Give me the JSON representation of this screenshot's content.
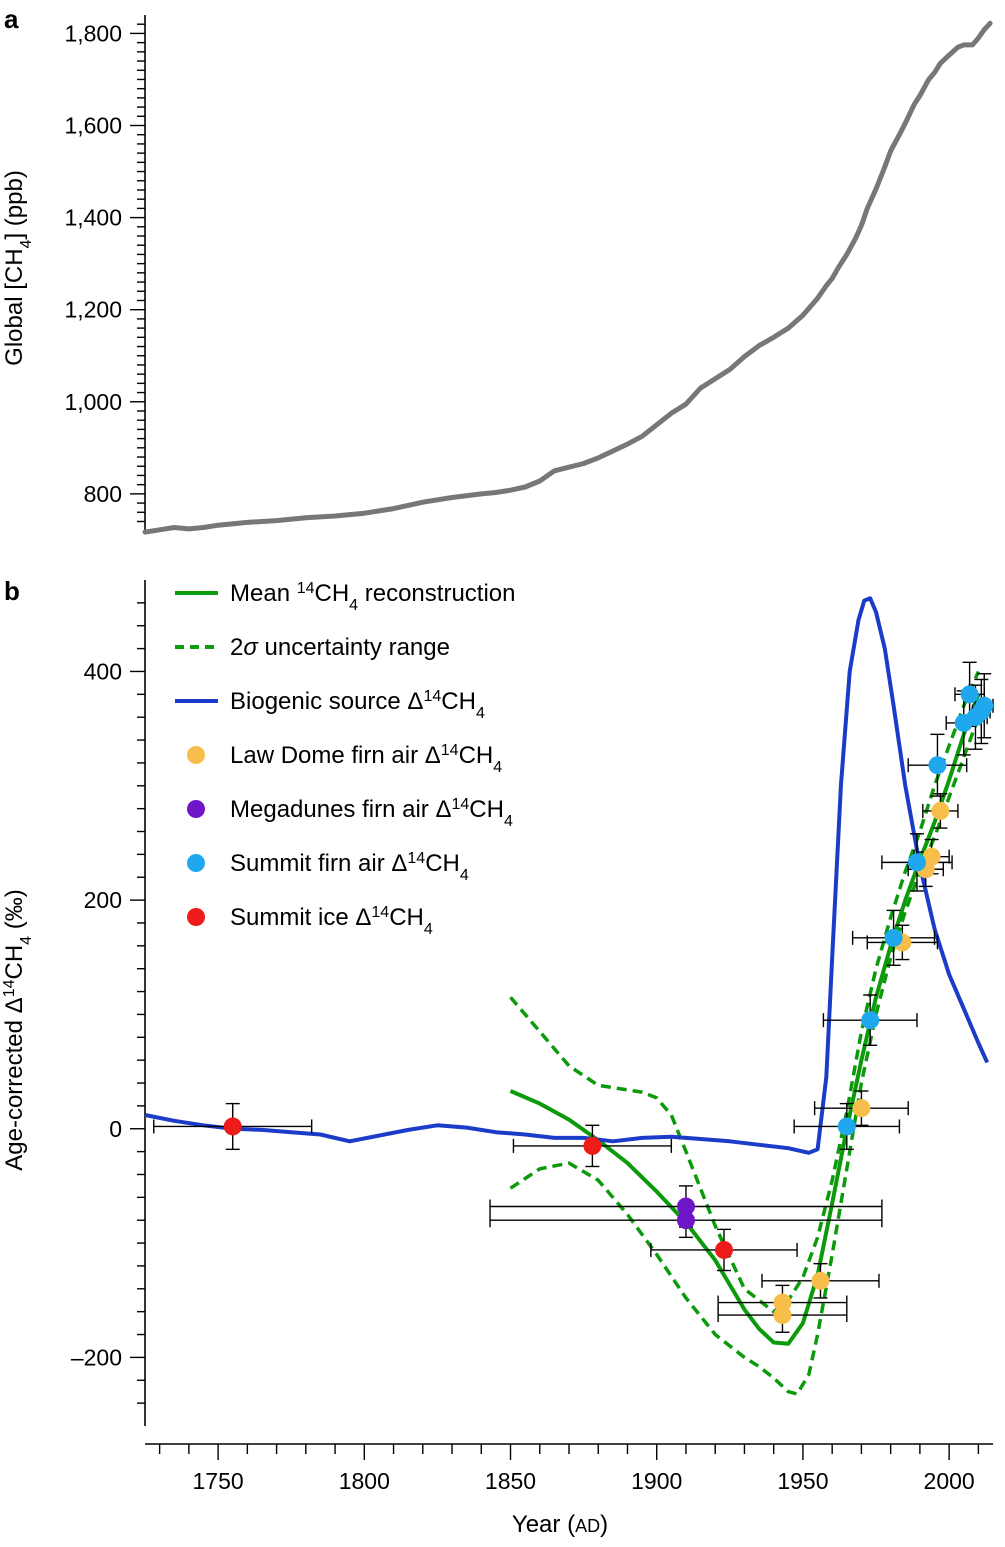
{
  "chart_data": [
    {
      "panel": "a",
      "type": "line",
      "ylabel": "Global [CH4] (ppb)",
      "ylim": [
        715,
        1840
      ],
      "xlim": [
        1725,
        2015
      ],
      "yticks": [
        800,
        1000,
        1200,
        1400,
        1600,
        1800
      ],
      "ytick_labels": [
        "800",
        "1,000",
        "1,200",
        "1,400",
        "1,600",
        "1,800"
      ],
      "series": [
        {
          "name": "Global CH4",
          "color": "#777777",
          "x": [
            1725,
            1730,
            1735,
            1740,
            1745,
            1750,
            1760,
            1770,
            1780,
            1790,
            1800,
            1810,
            1820,
            1830,
            1840,
            1845,
            1850,
            1855,
            1860,
            1865,
            1870,
            1875,
            1880,
            1885,
            1890,
            1895,
            1900,
            1905,
            1910,
            1915,
            1920,
            1925,
            1930,
            1935,
            1940,
            1945,
            1950,
            1955,
            1958,
            1960,
            1962,
            1965,
            1968,
            1970,
            1972,
            1975,
            1978,
            1980,
            1983,
            1985,
            1988,
            1990,
            1993,
            1995,
            1997,
            2000,
            2003,
            2005,
            2008,
            2010,
            2012,
            2014
          ],
          "y": [
            717,
            722,
            727,
            724,
            727,
            732,
            738,
            742,
            748,
            752,
            758,
            768,
            782,
            792,
            800,
            803,
            808,
            815,
            828,
            850,
            858,
            866,
            878,
            893,
            908,
            925,
            950,
            975,
            995,
            1030,
            1050,
            1070,
            1098,
            1122,
            1140,
            1160,
            1188,
            1225,
            1252,
            1268,
            1290,
            1320,
            1355,
            1383,
            1420,
            1462,
            1510,
            1545,
            1580,
            1605,
            1645,
            1665,
            1700,
            1715,
            1735,
            1753,
            1770,
            1775,
            1775,
            1790,
            1808,
            1822
          ]
        }
      ]
    },
    {
      "panel": "b",
      "type": "line",
      "xlabel": "Year",
      "xlabel_unit": "AD",
      "ylabel": "Age-corrected Δ14CH4 (‰)",
      "ylim": [
        -260,
        480
      ],
      "xlim": [
        1725,
        2015
      ],
      "xticks": [
        1750,
        1800,
        1850,
        1900,
        1950,
        2000
      ],
      "yticks": [
        -200,
        0,
        200,
        400
      ],
      "ytick_labels": [
        "–200",
        "0",
        "200",
        "400"
      ],
      "series": [
        {
          "name": "Mean 14CH4 reconstruction",
          "style": "solid",
          "color": "#0a9a0a",
          "x": [
            1850,
            1860,
            1870,
            1880,
            1890,
            1900,
            1910,
            1920,
            1930,
            1935,
            1940,
            1945,
            1950,
            1955,
            1960,
            1965,
            1970,
            1975,
            1980,
            1985,
            1990,
            1995,
            2000,
            2005,
            2010
          ],
          "y": [
            33,
            22,
            8,
            -10,
            -30,
            -55,
            -82,
            -115,
            -158,
            -175,
            -187,
            -188,
            -170,
            -128,
            -65,
            0,
            60,
            115,
            160,
            200,
            235,
            268,
            305,
            345,
            380
          ]
        },
        {
          "name": "2σ uncertainty range (upper)",
          "style": "dashed",
          "color": "#0a9a0a",
          "x": [
            1850,
            1860,
            1870,
            1880,
            1890,
            1895,
            1900,
            1905,
            1910,
            1920,
            1930,
            1940,
            1945,
            1950,
            1955,
            1960,
            1965,
            1970,
            1975,
            1980,
            1985,
            1990,
            1995,
            2000,
            2005,
            2010
          ],
          "y": [
            115,
            85,
            55,
            38,
            34,
            32,
            27,
            12,
            -20,
            -85,
            -140,
            -160,
            -150,
            -130,
            -95,
            -45,
            15,
            85,
            140,
            185,
            225,
            260,
            300,
            335,
            370,
            400
          ]
        },
        {
          "name": "2σ uncertainty range (lower)",
          "style": "dashed",
          "color": "#0a9a0a",
          "x": [
            1850,
            1860,
            1870,
            1880,
            1890,
            1900,
            1910,
            1920,
            1930,
            1935,
            1940,
            1945,
            1948,
            1952,
            1955,
            1960,
            1965,
            1970,
            1975,
            1980,
            1985,
            1990,
            1995,
            2000,
            2005,
            2010
          ],
          "y": [
            -52,
            -35,
            -30,
            -45,
            -75,
            -110,
            -148,
            -180,
            -200,
            -208,
            -218,
            -230,
            -232,
            -215,
            -180,
            -110,
            -35,
            40,
            100,
            150,
            190,
            225,
            255,
            290,
            325,
            360
          ]
        },
        {
          "name": "Biogenic source Δ14CH4",
          "style": "solid",
          "color": "#1a3cc8",
          "x": [
            1725,
            1735,
            1745,
            1755,
            1765,
            1775,
            1785,
            1795,
            1805,
            1815,
            1825,
            1835,
            1845,
            1855,
            1865,
            1875,
            1885,
            1895,
            1905,
            1915,
            1925,
            1935,
            1945,
            1952,
            1955,
            1958,
            1960,
            1963,
            1966,
            1969,
            1971,
            1973,
            1975,
            1978,
            1981,
            1985,
            1990,
            1995,
            2000,
            2005,
            2010,
            2013
          ],
          "y": [
            12,
            7,
            3,
            0,
            -1,
            -3,
            -5,
            -11,
            -6,
            -1,
            3,
            1,
            -3,
            -5,
            -8,
            -8,
            -11,
            -8,
            -7,
            -9,
            -11,
            -14,
            -17,
            -21,
            -18,
            45,
            150,
            300,
            400,
            445,
            462,
            464,
            452,
            420,
            370,
            300,
            230,
            175,
            135,
            105,
            75,
            58
          ]
        }
      ],
      "point_groups": [
        {
          "name": "Law Dome firn air Δ14CH4",
          "color": "#f7be4b",
          "x": [
            1943,
            1943,
            1956,
            1970,
            1984,
            1992,
            1994,
            1997
          ],
          "y": [
            -152,
            -163,
            -133,
            18,
            163,
            227,
            238,
            278
          ],
          "xerr": [
            22,
            22,
            20,
            16,
            12,
            6,
            6,
            6
          ],
          "yerr": [
            15,
            15,
            15,
            15,
            15,
            15,
            15,
            15
          ]
        },
        {
          "name": "Megadunes firn air Δ14CH4",
          "color": "#6f16c8",
          "x": [
            1910,
            1910
          ],
          "y": [
            -68,
            -80
          ],
          "xerr": [
            67,
            67
          ],
          "yerr": [
            18,
            15
          ]
        },
        {
          "name": "Summit firn air Δ14CH4",
          "color": "#1fa8ee",
          "x": [
            1965,
            1973,
            1981,
            1989,
            1996,
            2005,
            2007,
            2009,
            2011,
            2012
          ],
          "y": [
            2,
            95,
            167,
            233,
            318,
            355,
            380,
            360,
            365,
            370
          ],
          "xerr": [
            18,
            16,
            14,
            12,
            10,
            6,
            5,
            4,
            3,
            3
          ],
          "yerr": [
            20,
            22,
            24,
            25,
            27,
            28,
            28,
            28,
            28,
            28
          ]
        },
        {
          "name": "Summit ice Δ14CH4",
          "color": "#ee1b1b",
          "x": [
            1755,
            1878,
            1923
          ],
          "y": [
            2,
            -15,
            -106
          ],
          "xerr": [
            27,
            27,
            25
          ],
          "yerr": [
            20,
            18,
            18
          ]
        }
      ]
    }
  ],
  "panels": {
    "a": {
      "letter": "a",
      "ylabel_text": "Global [CH",
      "ylabel_sub": "4",
      "ylabel_tail": "] (ppb)"
    },
    "b": {
      "letter": "b",
      "ylabel_text": "Age-corrected Δ",
      "ylabel_sup": "14",
      "ylabel_mid": "CH",
      "ylabel_sub": "4",
      "ylabel_tail": " (‰)",
      "xlabel_text": "Year (",
      "xlabel_unit": "AD",
      "xlabel_tail": ")"
    }
  },
  "legend": [
    {
      "kind": "line",
      "style": "solid",
      "color": "#0a9a0a",
      "pre": "Mean ",
      "sup": "14",
      "mid": "CH",
      "sub": "4",
      "post": " reconstruction"
    },
    {
      "kind": "line",
      "style": "dashed",
      "color": "#0a9a0a",
      "pre": "2",
      "italic": "σ",
      "post": " uncertainty range"
    },
    {
      "kind": "line",
      "style": "solid",
      "color": "#1a3cc8",
      "pre": "Biogenic source Δ",
      "sup": "14",
      "mid": "CH",
      "sub": "4",
      "post": ""
    },
    {
      "kind": "dot",
      "color": "#f7be4b",
      "pre": "Law Dome firn air Δ",
      "sup": "14",
      "mid": "CH",
      "sub": "4",
      "post": ""
    },
    {
      "kind": "dot",
      "color": "#6f16c8",
      "pre": "Megadunes firn air Δ",
      "sup": "14",
      "mid": "CH",
      "sub": "4",
      "post": ""
    },
    {
      "kind": "dot",
      "color": "#1fa8ee",
      "pre": "Summit firn air Δ",
      "sup": "14",
      "mid": "CH",
      "sub": "4",
      "post": ""
    },
    {
      "kind": "dot",
      "color": "#ee1b1b",
      "pre": "Summit ice Δ",
      "sup": "14",
      "mid": "CH",
      "sub": "4",
      "post": ""
    }
  ]
}
